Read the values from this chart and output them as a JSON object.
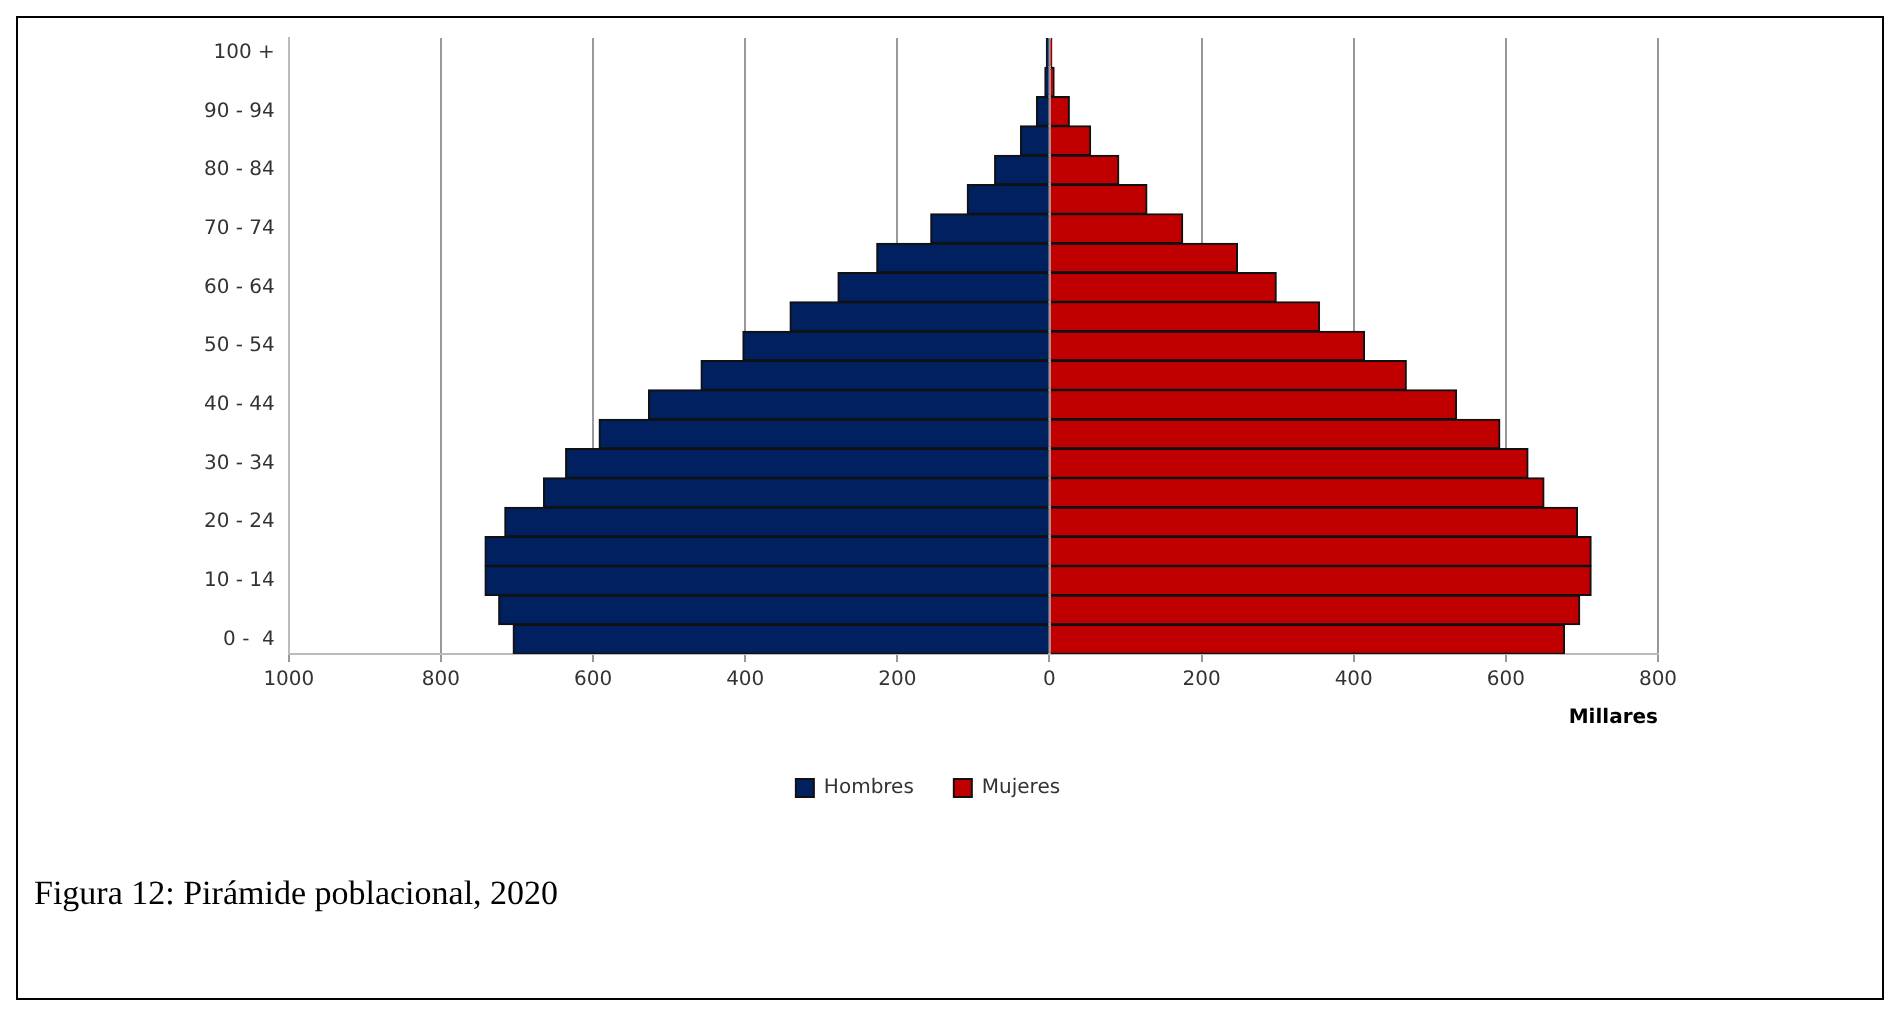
{
  "chart_data": {
    "type": "bar",
    "orientation": "horizontal",
    "stacked": true,
    "xlabel": "Millares",
    "categories": [
      "100 +",
      null,
      "90 - 94",
      null,
      "80 - 84",
      null,
      "70 - 74",
      null,
      "60 - 64",
      null,
      "50 - 54",
      null,
      "40 - 44",
      null,
      "30 - 34",
      null,
      "20 - 24",
      null,
      "10 - 14",
      null,
      "0 -  4"
    ],
    "series": [
      {
        "name": "Hombres",
        "color": "#002060",
        "values": [
          -4,
          -6,
          -17,
          -38,
          -72,
          -108,
          -156,
          -227,
          -278,
          -341,
          -403,
          -458,
          -527,
          -592,
          -636,
          -665,
          -716,
          -742,
          -742,
          -724,
          -705
        ]
      },
      {
        "name": "Mujeres",
        "color": "#c00000",
        "values": [
          3,
          6,
          26,
          54,
          91,
          128,
          175,
          247,
          298,
          355,
          414,
          469,
          535,
          592,
          629,
          650,
          694,
          712,
          712,
          697,
          677
        ]
      }
    ],
    "xlim": [
      -1000,
      800
    ],
    "xticks": [
      {
        "value": -1000,
        "label": "1000"
      },
      {
        "value": -800,
        "label": "800"
      },
      {
        "value": -600,
        "label": "600"
      },
      {
        "value": -400,
        "label": "400"
      },
      {
        "value": -200,
        "label": "200"
      },
      0,
      200,
      400,
      600,
      800
    ],
    "grid": "x",
    "legend": "bottom",
    "annotations": [
      "Figura 12: Pirámide poblacional, 2020"
    ]
  }
}
